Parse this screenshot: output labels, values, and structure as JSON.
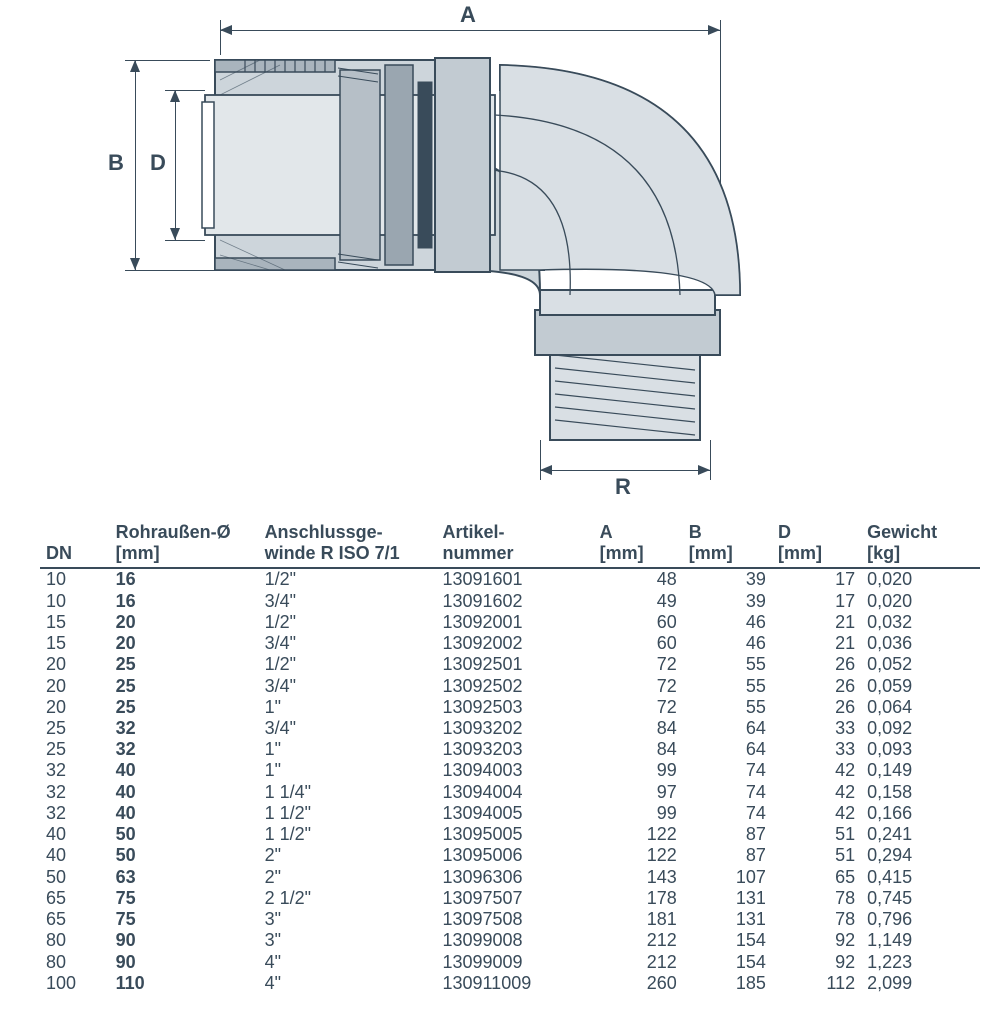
{
  "diagram": {
    "labels": {
      "A": "A",
      "B": "B",
      "D": "D",
      "R": "R"
    },
    "stroke_color": "#394b5a",
    "fill_light": "#d9dfe4",
    "fill_mid": "#a9b4bd",
    "fill_dark": "#6b7b87",
    "label_fontsize": 22
  },
  "table": {
    "headers": {
      "dn": "DN",
      "rohr_line1": "Rohraußen-Ø",
      "rohr_line2": "[mm]",
      "gewinde_line1": "Anschlussge-",
      "gewinde_line2": "winde R ISO 7/1",
      "artikel_line1": "Artikel-",
      "artikel_line2": "nummer",
      "a_line1": "A",
      "a_line2": "[mm]",
      "b_line1": "B",
      "b_line2": "[mm]",
      "d_line1": "D",
      "d_line2": "[mm]",
      "gewicht_line1": "Gewicht",
      "gewicht_line2": "[kg]"
    },
    "rows": [
      {
        "dn": "10",
        "rohr": "16",
        "gewinde": "1/2\"",
        "artikel": "13091601",
        "a": "48",
        "b": "39",
        "d": "17",
        "gewicht": "0,020"
      },
      {
        "dn": "10",
        "rohr": "16",
        "gewinde": "3/4\"",
        "artikel": "13091602",
        "a": "49",
        "b": "39",
        "d": "17",
        "gewicht": "0,020"
      },
      {
        "dn": "15",
        "rohr": "20",
        "gewinde": "1/2\"",
        "artikel": "13092001",
        "a": "60",
        "b": "46",
        "d": "21",
        "gewicht": "0,032"
      },
      {
        "dn": "15",
        "rohr": "20",
        "gewinde": "3/4\"",
        "artikel": "13092002",
        "a": "60",
        "b": "46",
        "d": "21",
        "gewicht": "0,036"
      },
      {
        "dn": "20",
        "rohr": "25",
        "gewinde": "1/2\"",
        "artikel": "13092501",
        "a": "72",
        "b": "55",
        "d": "26",
        "gewicht": "0,052"
      },
      {
        "dn": "20",
        "rohr": "25",
        "gewinde": "3/4\"",
        "artikel": "13092502",
        "a": "72",
        "b": "55",
        "d": "26",
        "gewicht": "0,059"
      },
      {
        "dn": "20",
        "rohr": "25",
        "gewinde": "1\"",
        "artikel": "13092503",
        "a": "72",
        "b": "55",
        "d": "26",
        "gewicht": "0,064"
      },
      {
        "dn": "25",
        "rohr": "32",
        "gewinde": "3/4\"",
        "artikel": "13093202",
        "a": "84",
        "b": "64",
        "d": "33",
        "gewicht": "0,092"
      },
      {
        "dn": "25",
        "rohr": "32",
        "gewinde": "1\"",
        "artikel": "13093203",
        "a": "84",
        "b": "64",
        "d": "33",
        "gewicht": "0,093"
      },
      {
        "dn": "32",
        "rohr": "40",
        "gewinde": "1\"",
        "artikel": "13094003",
        "a": "99",
        "b": "74",
        "d": "42",
        "gewicht": "0,149"
      },
      {
        "dn": "32",
        "rohr": "40",
        "gewinde": "1 1/4\"",
        "artikel": "13094004",
        "a": "97",
        "b": "74",
        "d": "42",
        "gewicht": "0,158"
      },
      {
        "dn": "32",
        "rohr": "40",
        "gewinde": "1 1/2\"",
        "artikel": "13094005",
        "a": "99",
        "b": "74",
        "d": "42",
        "gewicht": "0,166"
      },
      {
        "dn": "40",
        "rohr": "50",
        "gewinde": "1 1/2\"",
        "artikel": "13095005",
        "a": "122",
        "b": "87",
        "d": "51",
        "gewicht": "0,241"
      },
      {
        "dn": "40",
        "rohr": "50",
        "gewinde": "2\"",
        "artikel": "13095006",
        "a": "122",
        "b": "87",
        "d": "51",
        "gewicht": "0,294"
      },
      {
        "dn": "50",
        "rohr": "63",
        "gewinde": "2\"",
        "artikel": "13096306",
        "a": "143",
        "b": "107",
        "d": "65",
        "gewicht": "0,415"
      },
      {
        "dn": "65",
        "rohr": "75",
        "gewinde": "2 1/2\"",
        "artikel": "13097507",
        "a": "178",
        "b": "131",
        "d": "78",
        "gewicht": "0,745"
      },
      {
        "dn": "65",
        "rohr": "75",
        "gewinde": "3\"",
        "artikel": "13097508",
        "a": "181",
        "b": "131",
        "d": "78",
        "gewicht": "0,796"
      },
      {
        "dn": "80",
        "rohr": "90",
        "gewinde": "3\"",
        "artikel": "13099008",
        "a": "212",
        "b": "154",
        "d": "92",
        "gewicht": "1,149"
      },
      {
        "dn": "80",
        "rohr": "90",
        "gewinde": "4\"",
        "artikel": "13099009",
        "a": "212",
        "b": "154",
        "d": "92",
        "gewicht": "1,223"
      },
      {
        "dn": "100",
        "rohr": "110",
        "gewinde": "4\"",
        "artikel": "130911009",
        "a": "260",
        "b": "185",
        "d": "112",
        "gewicht": "2,099"
      }
    ]
  }
}
